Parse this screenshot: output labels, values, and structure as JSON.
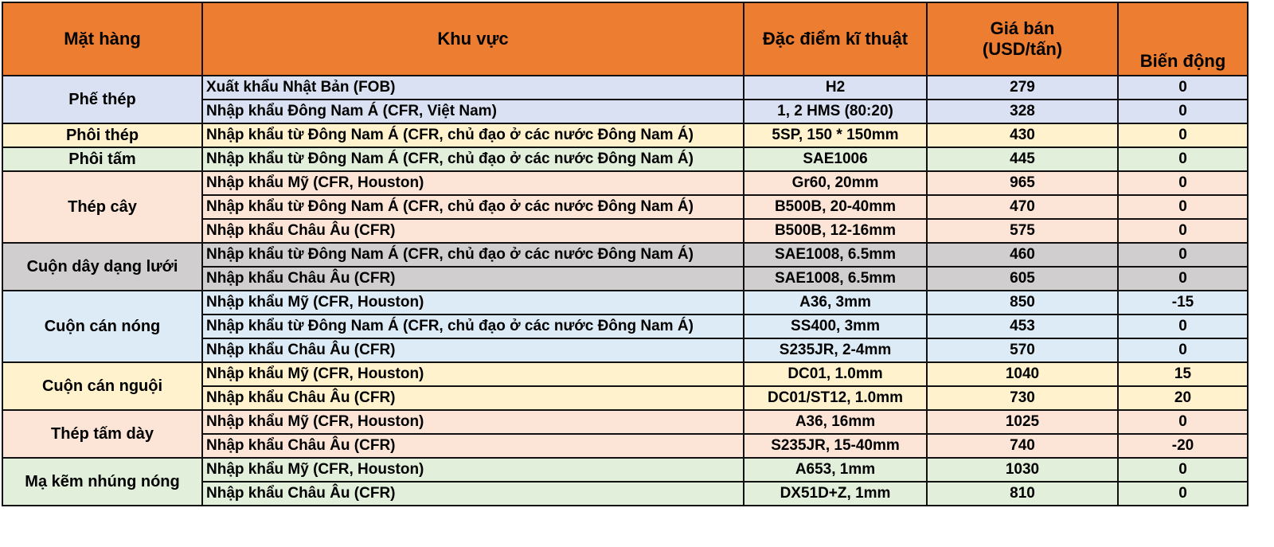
{
  "headers": [
    "Mặt hàng",
    "Khu vực",
    "Đặc điểm kĩ thuật",
    "Giá bán\n(USD/tấn)",
    "Biến động"
  ],
  "groups": [
    {
      "item": "Phế thép",
      "color": "#D9E1F2",
      "rows": [
        [
          "Xuất khẩu Nhật Bản (FOB)",
          "H2",
          "279",
          "0"
        ],
        [
          "Nhập khẩu Đông Nam Á (CFR, Việt Nam)",
          "1, 2 HMS (80:20)",
          "328",
          "0"
        ]
      ]
    },
    {
      "item": "Phôi thép",
      "color": "#FFF2CC",
      "rows": [
        [
          "Nhập khẩu từ Đông Nam Á (CFR, chủ đạo ở các nước Đông Nam Á)",
          "5SP, 150 * 150mm",
          "430",
          "0"
        ]
      ]
    },
    {
      "item": "Phôi tấm",
      "color": "#E2EFDA",
      "rows": [
        [
          "Nhập khẩu từ Đông Nam Á (CFR, chủ đạo ở các nước Đông Nam Á)",
          "SAE1006",
          "445",
          "0"
        ]
      ]
    },
    {
      "item": "Thép cây",
      "color": "#FCE4D6",
      "rows": [
        [
          "Nhập khẩu Mỹ (CFR, Houston)",
          "Gr60, 20mm",
          "965",
          "0"
        ],
        [
          "Nhập khẩu từ Đông Nam Á (CFR, chủ đạo ở các nước Đông Nam Á)",
          "B500B, 20-40mm",
          "470",
          "0"
        ],
        [
          "Nhập khẩu Châu Âu (CFR)",
          "B500B, 12-16mm",
          "575",
          "0"
        ]
      ]
    },
    {
      "item": "Cuộn dây dạng lưới",
      "color": "#D0CECE",
      "rows": [
        [
          "Nhập khẩu từ Đông Nam Á (CFR, chủ đạo ở các nước Đông Nam Á)",
          "SAE1008, 6.5mm",
          "460",
          "0"
        ],
        [
          "Nhập khẩu Châu Âu (CFR)",
          "SAE1008, 6.5mm",
          "605",
          "0"
        ]
      ]
    },
    {
      "item": "Cuộn cán nóng",
      "color": "#DDEBF7",
      "rows": [
        [
          "Nhập khẩu Mỹ (CFR, Houston)",
          "A36, 3mm",
          "850",
          "-15"
        ],
        [
          "Nhập khẩu từ Đông Nam Á (CFR, chủ đạo ở các nước Đông Nam Á)",
          "SS400, 3mm",
          "453",
          "0"
        ],
        [
          "Nhập khẩu Châu Âu (CFR)",
          "S235JR, 2-4mm",
          "570",
          "0"
        ]
      ]
    },
    {
      "item": "Cuộn cán nguội",
      "color": "#FFF2CC",
      "rows": [
        [
          "Nhập khẩu Mỹ (CFR, Houston)",
          "DC01, 1.0mm",
          "1040",
          "15"
        ],
        [
          "Nhập khẩu Châu Âu (CFR)",
          "DC01/ST12, 1.0mm",
          "730",
          "20"
        ]
      ]
    },
    {
      "item": "Thép tấm dày",
      "color": "#FCE4D6",
      "rows": [
        [
          "Nhập khẩu Mỹ (CFR, Houston)",
          "A36, 16mm",
          "1025",
          "0"
        ],
        [
          "Nhập khẩu Châu Âu (CFR)",
          "S235JR, 15-40mm",
          "740",
          "-20"
        ]
      ]
    },
    {
      "item": "Mạ kẽm nhúng nóng",
      "color": "#E2EFDA",
      "rows": [
        [
          "Nhập khẩu Mỹ (CFR, Houston)",
          "A653, 1mm",
          "1030",
          "0"
        ],
        [
          "Nhập khẩu Châu Âu (CFR)",
          "DX51D+Z, 1mm",
          "810",
          "0"
        ]
      ]
    }
  ],
  "header_color": "#ED7D31"
}
